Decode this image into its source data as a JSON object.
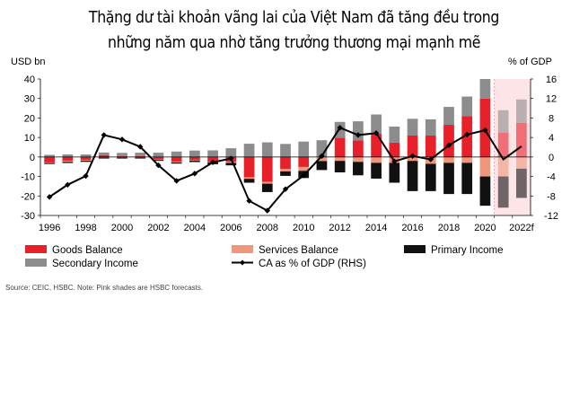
{
  "title_lines": [
    "Thặng dư tài khoản vãng lai của Việt Nam đã tăng đều trong",
    "những năm qua nhờ tăng trưởng thương mại mạnh mẽ"
  ],
  "source": "Source: CEIC, HSBC. Note: Pink shades are HSBC forecasts.",
  "colors": {
    "goods": "#e8202a",
    "services": "#f0967a",
    "primary": "#111111",
    "secondary": "#8c8c8c",
    "ca_line": "#000000",
    "forecast_shade": "#fde4e6"
  },
  "chart_data": {
    "type": "bar",
    "stacked": true,
    "years": [
      "1996",
      "1997",
      "1998",
      "1999",
      "2000",
      "2001",
      "2002",
      "2003",
      "2004",
      "2005",
      "2006",
      "2007",
      "2008",
      "2009",
      "2010",
      "2011",
      "2012",
      "2013",
      "2014",
      "2015",
      "2016",
      "2017",
      "2018",
      "2019",
      "2020",
      "2021f",
      "2022f"
    ],
    "x_tick_labels": [
      "1996",
      "",
      "1998",
      "",
      "2000",
      "",
      "2002",
      "",
      "2004",
      "",
      "2006",
      "",
      "2008",
      "",
      "2010",
      "",
      "2012",
      "",
      "2014",
      "",
      "2016",
      "",
      "2018",
      "",
      "2020",
      "",
      "2022f"
    ],
    "forecast_years": [
      "2021f",
      "2022f"
    ],
    "ylabel_left": "USD bn",
    "ylabel_right": "% of GDP",
    "ylim_left": [
      -30,
      40
    ],
    "ylim_right": [
      -12,
      16
    ],
    "yticks_left": [
      40,
      30,
      20,
      10,
      0,
      -10,
      -20,
      -30
    ],
    "yticks_right": [
      16,
      12,
      8,
      4,
      0,
      -4,
      -8,
      -12
    ],
    "series": [
      {
        "name": "Goods Balance",
        "color_key": "goods",
        "axis": "left",
        "values": [
          -2.8,
          -2.0,
          -1.5,
          1.0,
          0.5,
          0.5,
          -1.2,
          -2.5,
          -1.5,
          -2.4,
          -2.5,
          -10.4,
          -12.8,
          -6.2,
          -5.1,
          0.0,
          9.8,
          8.5,
          12.0,
          7.4,
          11.0,
          11.0,
          16.5,
          21.0,
          30.0,
          12.5,
          17.5
        ]
      },
      {
        "name": "Services Balance",
        "color_key": "services",
        "axis": "left",
        "values": [
          -0.3,
          -0.5,
          -0.4,
          -0.3,
          -0.3,
          -0.3,
          -0.3,
          -0.3,
          -0.3,
          -0.3,
          -0.5,
          -0.8,
          -0.9,
          -1.2,
          -2.0,
          -2.1,
          -2.0,
          -2.5,
          -3.0,
          -3.0,
          -2.0,
          -3.5,
          -3.0,
          -3.0,
          -10.0,
          -10.0,
          -6.0
        ]
      },
      {
        "name": "Primary Income",
        "color_key": "primary",
        "axis": "left",
        "values": [
          -0.5,
          -0.6,
          -0.6,
          -0.5,
          -0.5,
          -0.5,
          -0.5,
          -0.6,
          -0.8,
          -1.0,
          -1.3,
          -2.0,
          -4.3,
          -2.3,
          -3.7,
          -4.6,
          -5.9,
          -6.9,
          -8.1,
          -10.2,
          -15.5,
          -14.0,
          -16.0,
          -16.0,
          -15.0,
          -16.0,
          -15.0
        ]
      },
      {
        "name": "Secondary Income",
        "color_key": "secondary",
        "axis": "left",
        "values": [
          1.1,
          1.3,
          1.3,
          1.3,
          1.6,
          1.7,
          2.2,
          2.8,
          3.3,
          3.4,
          4.5,
          6.8,
          7.5,
          6.7,
          7.9,
          8.6,
          8.2,
          9.8,
          9.8,
          8.2,
          8.6,
          8.3,
          9.2,
          10.0,
          10.0,
          11.5,
          12.0
        ]
      },
      {
        "name": "CA as % of GDP (RHS)",
        "color_key": "ca_line",
        "axis": "right",
        "kind": "line",
        "values": [
          -8.2,
          -5.7,
          -3.9,
          4.5,
          3.6,
          2.1,
          -1.7,
          -4.9,
          -3.4,
          -1.1,
          -0.3,
          -9.0,
          -11.0,
          -6.6,
          -3.8,
          0.2,
          6.0,
          4.5,
          4.9,
          -0.9,
          0.2,
          -0.5,
          2.4,
          4.6,
          5.5,
          -0.5,
          2.2
        ]
      }
    ],
    "legend": [
      {
        "name": "Goods Balance",
        "type": "bar",
        "color_key": "goods"
      },
      {
        "name": "Services Balance",
        "type": "bar",
        "color_key": "services"
      },
      {
        "name": "Primary Income",
        "type": "bar",
        "color_key": "primary"
      },
      {
        "name": "Secondary Income",
        "type": "bar",
        "color_key": "secondary"
      },
      {
        "name": "CA as % of GDP (RHS)",
        "type": "line",
        "color_key": "ca_line"
      }
    ],
    "legend_position": "bottom",
    "grid": false
  }
}
